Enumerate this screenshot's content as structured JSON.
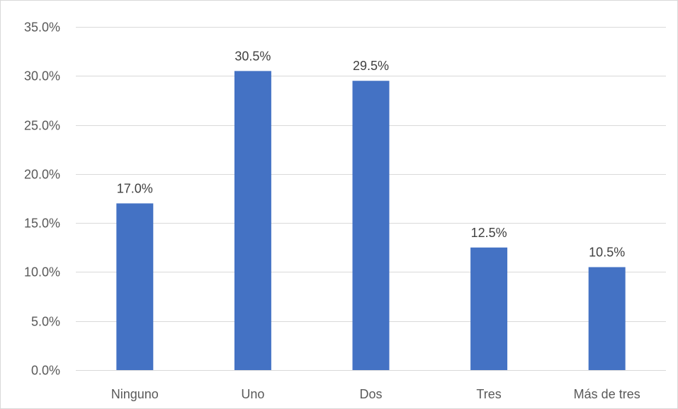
{
  "chart_data": {
    "type": "bar",
    "title": "",
    "xlabel": "",
    "ylabel": "",
    "categories": [
      "Ninguno",
      "Uno",
      "Dos",
      "Tres",
      "Más de tres"
    ],
    "series": [
      {
        "values": [
          17.0,
          30.5,
          29.5,
          12.5,
          10.5
        ],
        "data_labels": [
          "17.0%",
          "30.5%",
          "29.5%",
          "12.5%",
          "10.5%"
        ]
      }
    ],
    "ylim": [
      0,
      35
    ],
    "ytick_values": [
      0,
      5,
      10,
      15,
      20,
      25,
      30,
      35
    ],
    "ytick_labels": [
      "0.0%",
      "5.0%",
      "10.0%",
      "15.0%",
      "20.0%",
      "25.0%",
      "30.0%",
      "35.0%"
    ],
    "grid": true,
    "legend": "none",
    "colors": {
      "bar": "#4472c4",
      "grid": "#d9d9d9",
      "axis": "#d9d9d9"
    }
  }
}
